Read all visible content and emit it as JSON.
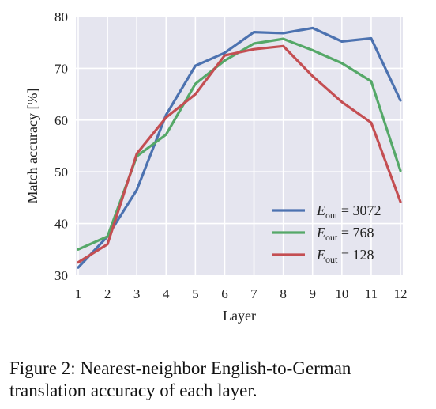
{
  "chart_data": {
    "type": "line",
    "x": [
      1,
      2,
      3,
      4,
      5,
      6,
      7,
      8,
      9,
      10,
      11,
      12
    ],
    "series": [
      {
        "name": "3072",
        "color": "#4c72b0",
        "values": [
          31.5,
          37.5,
          46.5,
          61,
          70.5,
          73,
          77,
          76.8,
          77.8,
          75.2,
          75.8,
          63.8
        ]
      },
      {
        "name": "768",
        "color": "#55a868",
        "values": [
          35,
          37.5,
          53,
          57.2,
          67,
          71.5,
          74.8,
          75.7,
          73.5,
          71,
          67.5,
          50.2
        ]
      },
      {
        "name": "128",
        "color": "#c44e52",
        "values": [
          32.5,
          36,
          53.5,
          60.5,
          65,
          72.5,
          73.7,
          74.3,
          68.5,
          63.5,
          59.5,
          44.2
        ]
      }
    ],
    "legend_prefix": "E",
    "legend_sub": "out",
    "xlabel": "Layer",
    "ylabel": "Match accuracy [%]",
    "ylim": [
      30,
      80
    ],
    "xlim": [
      1,
      12
    ],
    "yticks": [
      30,
      40,
      50,
      60,
      70,
      80
    ],
    "grid": true,
    "legend_position": "lower-right"
  },
  "caption": {
    "line1": "Figure 2: Nearest-neighbor English-to-German",
    "line2": "translation accuracy of each layer."
  }
}
